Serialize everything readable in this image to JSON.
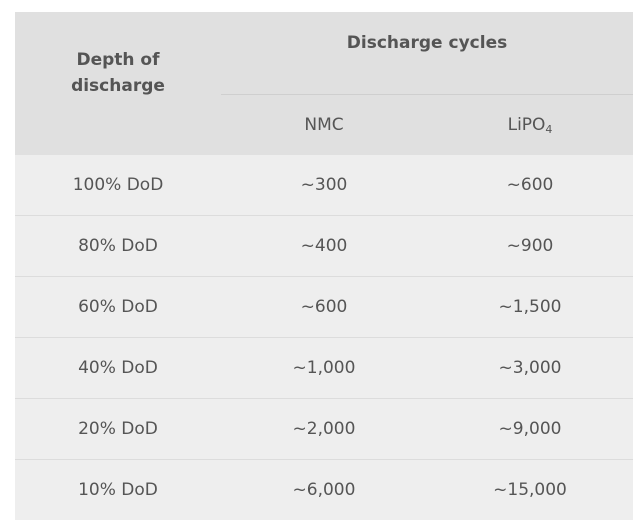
{
  "table": {
    "header_row_label": "Depth of discharge",
    "group_label": "Discharge cycles",
    "columns": [
      {
        "label": "NMC"
      },
      {
        "label_main": "LiPO",
        "label_sub": "4"
      }
    ],
    "rows": [
      {
        "dod": "100% DoD",
        "nmc": "~300",
        "lipo": "~600"
      },
      {
        "dod": "80% DoD",
        "nmc": "~400",
        "lipo": "~900"
      },
      {
        "dod": "60% DoD",
        "nmc": "~600",
        "lipo": "~1,500"
      },
      {
        "dod": "40% DoD",
        "nmc": "~1,000",
        "lipo": "~3,000"
      },
      {
        "dod": "20% DoD",
        "nmc": "~2,000",
        "lipo": "~9,000"
      },
      {
        "dod": "10% DoD",
        "nmc": "~6,000",
        "lipo": "~15,000"
      }
    ]
  },
  "colors": {
    "header_bg": "#e0e0e0",
    "body_bg": "#eeeeee",
    "text": "#555555"
  }
}
